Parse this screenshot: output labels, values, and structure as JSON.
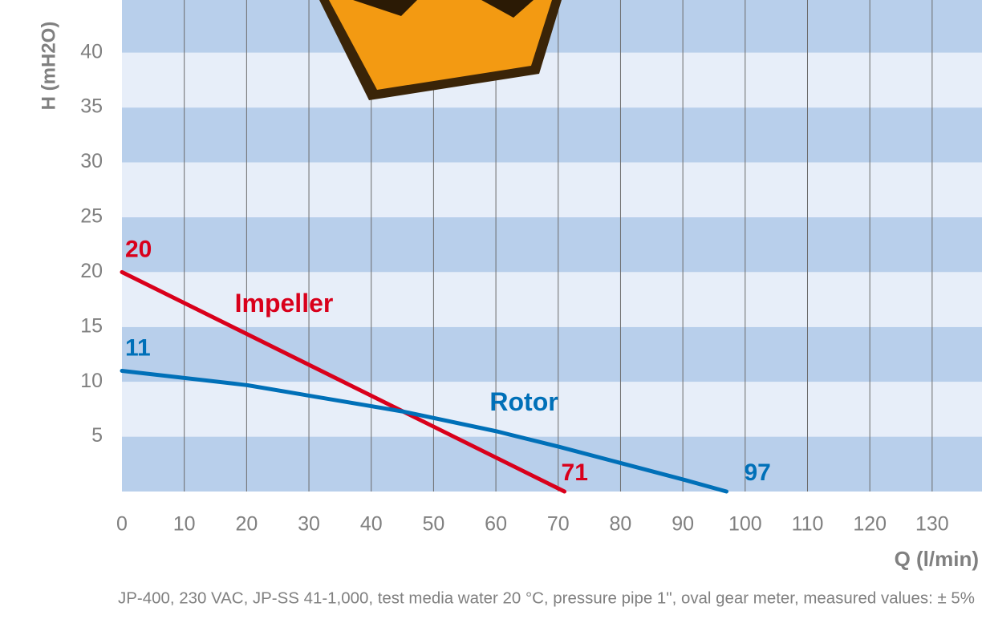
{
  "chart_data": {
    "type": "line",
    "y_label": "H (mH2O)",
    "x_label": "Q (l/min)",
    "note": "JP-400, 230 VAC, JP-SS 41-1,000, test media water 20 °C, pressure pipe 1\", oval gear meter, measured values: ± 5%",
    "xlim": [
      0,
      138
    ],
    "ylim": [
      0,
      44.8
    ],
    "xticks": [
      0,
      10,
      20,
      30,
      40,
      50,
      60,
      70,
      80,
      90,
      100,
      110,
      120,
      130
    ],
    "yticks": [
      5,
      10,
      15,
      20,
      25,
      30,
      35,
      40
    ],
    "grid": true,
    "series": [
      {
        "name": "Impeller",
        "color": "#d9001b",
        "x": [
          0,
          71
        ],
        "values": [
          20,
          0
        ]
      },
      {
        "name": "Rotor",
        "color": "#0070b8",
        "x": [
          0,
          20,
          45,
          60,
          70,
          80,
          90,
          97
        ],
        "values": [
          11,
          9.7,
          7.3,
          5.5,
          4.1,
          2.6,
          1.1,
          0
        ]
      }
    ]
  }
}
